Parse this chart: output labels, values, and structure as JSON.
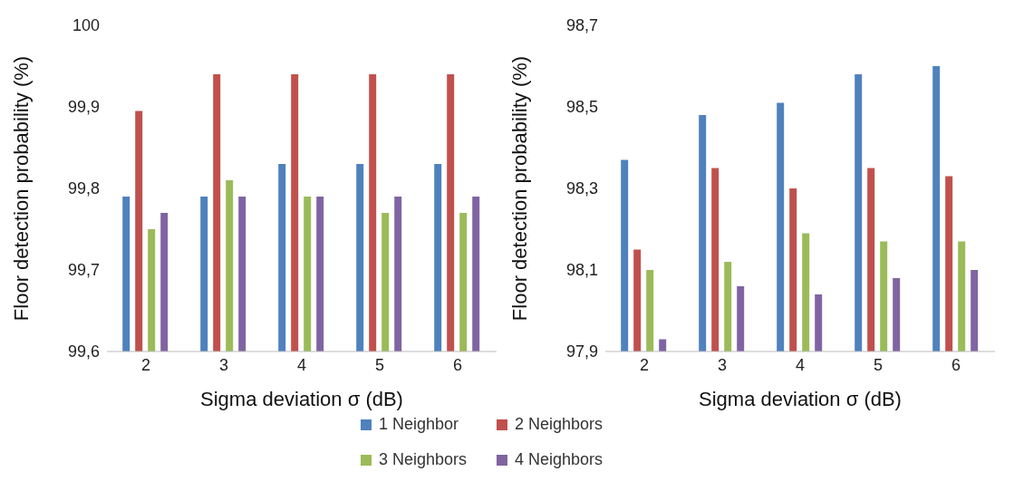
{
  "chart_data": [
    {
      "type": "bar",
      "xlabel": "Sigma deviation σ (dB)",
      "ylabel": "Floor detection probability (%)",
      "categories": [
        "2",
        "3",
        "4",
        "5",
        "6"
      ],
      "ylim": [
        99.6,
        100
      ],
      "yticks": [
        {
          "value": 99.6,
          "label": "99,6"
        },
        {
          "value": 99.7,
          "label": "99,7"
        },
        {
          "value": 99.8,
          "label": "99,8"
        },
        {
          "value": 99.9,
          "label": "99,9"
        },
        {
          "value": 100,
          "label": "100"
        }
      ],
      "legend": "bottom",
      "series": [
        {
          "name": "1 Neighbor",
          "color": "#4f81bd",
          "values": [
            99.79,
            99.79,
            99.83,
            99.83,
            99.83
          ]
        },
        {
          "name": "2 Neighbors",
          "color": "#c0504d",
          "values": [
            99.895,
            99.94,
            99.94,
            99.94,
            99.94
          ]
        },
        {
          "name": "3 Neighbors",
          "color": "#9bbb59",
          "values": [
            99.75,
            99.81,
            99.79,
            99.77,
            99.77
          ]
        },
        {
          "name": "4 Neighbors",
          "color": "#8064a2",
          "values": [
            99.77,
            99.79,
            99.79,
            99.79,
            99.79
          ]
        }
      ]
    },
    {
      "type": "bar",
      "xlabel": "Sigma deviation σ (dB)",
      "ylabel": "Floor detection probability (%)",
      "categories": [
        "2",
        "3",
        "4",
        "5",
        "6"
      ],
      "ylim": [
        97.9,
        98.7
      ],
      "yticks": [
        {
          "value": 97.9,
          "label": "97,9"
        },
        {
          "value": 98.1,
          "label": "98,1"
        },
        {
          "value": 98.3,
          "label": "98,3"
        },
        {
          "value": 98.5,
          "label": "98,5"
        },
        {
          "value": 98.7,
          "label": "98,7"
        }
      ],
      "series": [
        {
          "color": "#4f81bd",
          "values": [
            98.37,
            98.48,
            98.51,
            98.58,
            98.6
          ]
        },
        {
          "color": "#c0504d",
          "values": [
            98.15,
            98.35,
            98.3,
            98.35,
            98.33
          ]
        },
        {
          "color": "#9bbb59",
          "values": [
            98.1,
            98.12,
            98.19,
            98.17,
            98.17
          ]
        },
        {
          "color": "#8064a2",
          "values": [
            97.93,
            98.06,
            98.04,
            98.08,
            98.1
          ]
        }
      ]
    }
  ]
}
